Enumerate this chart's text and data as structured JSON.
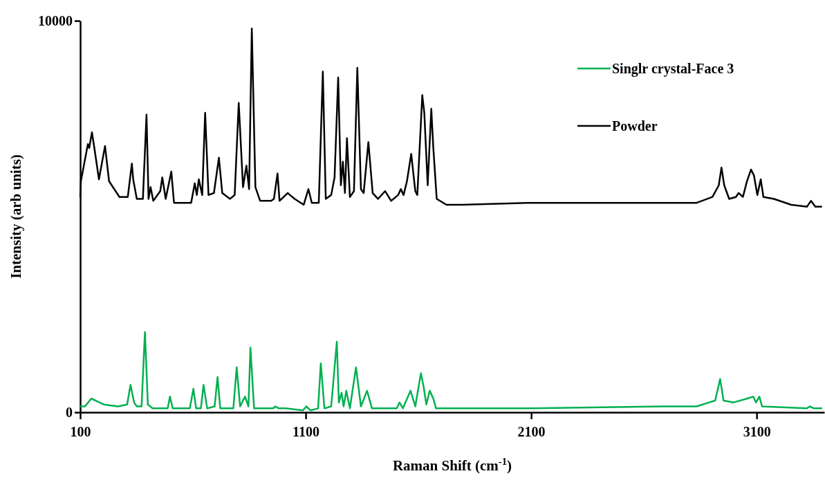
{
  "chart_data": {
    "type": "line",
    "xlabel": "Raman Shift (cm$^{-1}$)",
    "ylabel": "Intensity (arb units)",
    "xlim": [
      100,
      3400
    ],
    "ylim": [
      0,
      10000
    ],
    "xticks": [
      100,
      1100,
      2100,
      3100
    ],
    "yticks": [
      0,
      10000
    ],
    "grid": false,
    "legend": "top right",
    "line_style": "solid",
    "marker": "none",
    "series": [
      {
        "name": "Singlr crystal-Face 3",
        "color": "#00b050",
        "x": [
          100,
          121,
          149,
          204,
          268,
          308,
          323,
          339,
          351,
          372,
          387,
          400,
          421,
          488,
          498,
          510,
          586,
          602,
          614,
          635,
          647,
          663,
          696,
          709,
          721,
          779,
          794,
          809,
          831,
          846,
          855,
          871,
          956,
          965,
          981,
          1011,
          1088,
          1103,
          1121,
          1155,
          1167,
          1183,
          1213,
          1238,
          1247,
          1259,
          1268,
          1280,
          1296,
          1323,
          1345,
          1372,
          1394,
          1504,
          1516,
          1531,
          1565,
          1586,
          1611,
          1623,
          1635,
          1650,
          1666,
          1678,
          1754,
          2100,
          2681,
          2834,
          2916,
          2938,
          2953,
          2996,
          3057,
          3085,
          3097,
          3112,
          3124,
          3323,
          3335,
          3354,
          3390
        ],
        "values": [
          150,
          150,
          350,
          200,
          150,
          200,
          700,
          250,
          150,
          150,
          2050,
          200,
          100,
          100,
          400,
          100,
          100,
          600,
          100,
          100,
          700,
          100,
          150,
          900,
          100,
          100,
          1150,
          150,
          400,
          150,
          1650,
          100,
          100,
          150,
          100,
          100,
          50,
          150,
          50,
          100,
          1250,
          100,
          150,
          1800,
          250,
          500,
          150,
          550,
          100,
          1150,
          150,
          550,
          100,
          100,
          250,
          100,
          550,
          150,
          1000,
          650,
          200,
          550,
          350,
          100,
          100,
          100,
          150,
          150,
          300,
          850,
          300,
          250,
          350,
          400,
          250,
          400,
          150,
          100,
          150,
          100,
          100
        ]
      },
      {
        "name": "Powder",
        "color": "#000000",
        "x": [
          100,
          103,
          134,
          140,
          152,
          164,
          183,
          210,
          228,
          274,
          311,
          329,
          335,
          351,
          378,
          394,
          403,
          412,
          424,
          455,
          464,
          479,
          504,
          516,
          592,
          608,
          617,
          626,
          641,
          654,
          669,
          693,
          715,
          730,
          764,
          785,
          803,
          822,
          837,
          849,
          861,
          877,
          898,
          947,
          959,
          975,
          984,
          1020,
          1030,
          1051,
          1091,
          1112,
          1127,
          1158,
          1176,
          1189,
          1213,
          1228,
          1244,
          1256,
          1265,
          1274,
          1283,
          1296,
          1314,
          1329,
          1345,
          1357,
          1378,
          1397,
          1421,
          1452,
          1479,
          1510,
          1522,
          1534,
          1549,
          1568,
          1586,
          1595,
          1617,
          1626,
          1641,
          1657,
          1666,
          1681,
          1724,
          1794,
          2100,
          2497,
          2681,
          2834,
          2904,
          2932,
          2944,
          2956,
          2978,
          3008,
          3020,
          3039,
          3057,
          3075,
          3088,
          3103,
          3118,
          3130,
          3176,
          3253,
          3323,
          3341,
          3360,
          3390
        ],
        "values": [
          5500,
          5900,
          6850,
          6750,
          7150,
          6700,
          5950,
          6800,
          5900,
          5500,
          5500,
          6350,
          5950,
          5450,
          5450,
          7600,
          5450,
          5750,
          5400,
          5650,
          6000,
          5450,
          6150,
          5350,
          5350,
          5850,
          5550,
          5950,
          5550,
          7650,
          5550,
          5600,
          6500,
          5600,
          5450,
          5550,
          7900,
          5750,
          6300,
          5700,
          9800,
          5750,
          5400,
          5400,
          5450,
          6100,
          5400,
          5600,
          5550,
          5450,
          5300,
          5700,
          5350,
          5350,
          8700,
          5450,
          5550,
          6000,
          8550,
          5800,
          6400,
          5600,
          7000,
          5500,
          5650,
          8800,
          5700,
          5600,
          6900,
          5600,
          5450,
          5650,
          5400,
          5550,
          5700,
          5550,
          5900,
          6600,
          5650,
          5550,
          8100,
          7650,
          5800,
          7750,
          6750,
          5450,
          5300,
          5300,
          5350,
          5350,
          5350,
          5350,
          5500,
          5800,
          6250,
          5800,
          5450,
          5500,
          5600,
          5500,
          5900,
          6200,
          6050,
          5550,
          5950,
          5500,
          5450,
          5300,
          5250,
          5400,
          5250,
          5250
        ]
      }
    ]
  }
}
